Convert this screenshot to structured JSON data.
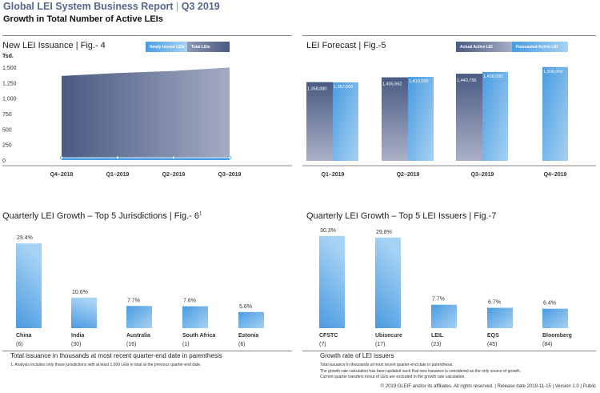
{
  "header": {
    "title": "Global LEI System Business Report",
    "period": "Q3 2019",
    "subtitle": "Growth in Total Number of Active LEIs"
  },
  "colors": {
    "dark": "#4a5a82",
    "light": "#9fa8c0",
    "blue": "#4a9be0",
    "lightblue": "#a6d2f4"
  },
  "chart_data": [
    {
      "type": "area",
      "title": "New LEI Issuance  |  Fig.- 4",
      "ylabel": "Tsd.",
      "ylim": [
        0,
        1500
      ],
      "yticks": [
        "1,500",
        "1,250",
        "1,000",
        "750",
        "500",
        "250",
        "0"
      ],
      "categories": [
        "Q4–2018",
        "Q1–2019",
        "Q2–2019",
        "Q3–2019"
      ],
      "legend": [
        "Newly Issued LEIs",
        "Total LEIs"
      ],
      "series": [
        {
          "name": "Total LEIs",
          "values": [
            1359,
            1406,
            1441,
            1495
          ]
        },
        {
          "name": "Newly Issued LEIs",
          "values": [
            60,
            65,
            60,
            55
          ]
        }
      ]
    },
    {
      "type": "bar",
      "title": "LEI Forecast  |  Fig.-5",
      "categories": [
        "Q1–2019",
        "Q2–2019",
        "Q3–2019",
        "Q4–2019"
      ],
      "legend": [
        "Actual Active LEI",
        "Forecasted Active LEI"
      ],
      "series": [
        {
          "name": "Actual Active LEI",
          "values": [
            1358880,
            1405662,
            1440795,
            null
          ],
          "labels": [
            "1,358,880",
            "1,405,662",
            "1,440,795",
            ""
          ]
        },
        {
          "name": "Forecasted Active LEI",
          "values": [
            1357000,
            1410000,
            1458000,
            1506000
          ],
          "labels": [
            "1,357,000",
            "1,410,000",
            "1,458,000",
            "1,506,000"
          ]
        }
      ]
    },
    {
      "type": "bar",
      "title": "Quarterly LEI Growth – Top 5 Jurisdictions  |  Fig.- 6",
      "title_sup": "1",
      "categories": [
        "China",
        "India",
        "Australia",
        "South Africa",
        "Estonia"
      ],
      "counts": [
        "(6)",
        "(30)",
        "(16)",
        "(1)",
        "(6)"
      ],
      "values": [
        29.4,
        10.6,
        7.7,
        7.6,
        5.6
      ],
      "labels": [
        "29.4%",
        "10.6%",
        "7.7%",
        "7.6%",
        "5.6%"
      ],
      "note": "Total issuance in thousands at most recent quarter-end date in parenthesis",
      "footnote": "1. Analysis includes only those jurisdictions with at least 1,000 LEIs in total at the previous quarter-end date."
    },
    {
      "type": "bar",
      "title": "Quarterly LEI Growth – Top 5 LEI Issuers  |  Fig.-7",
      "categories": [
        "CFSTC",
        "Ubisecure",
        "LEIL",
        "EQS",
        "Bloomberg"
      ],
      "counts": [
        "(7)",
        "(17)",
        "(23)",
        "(45)",
        "(84)"
      ],
      "values": [
        30.3,
        29.8,
        7.7,
        6.7,
        6.4
      ],
      "labels": [
        "30.3%",
        "29.8%",
        "7.7%",
        "6.7%",
        "6.4%"
      ],
      "note": "Growth rate of LEI issuers",
      "footnote": "Total issuance in thousands at most recent quarter-end date in parenthesis.",
      "footnote2": "The growth rate calculation has been updated such that new issuance is considered as the only source of growth. Current quarter transfers in/out of LEIs are excluded in the growth rate calculation."
    }
  ],
  "footer": "© 2019 GLEIF and/or its affiliates. All rights reserved.  |  Release date 2019-11-15  |  Version 1.0  |  Public"
}
